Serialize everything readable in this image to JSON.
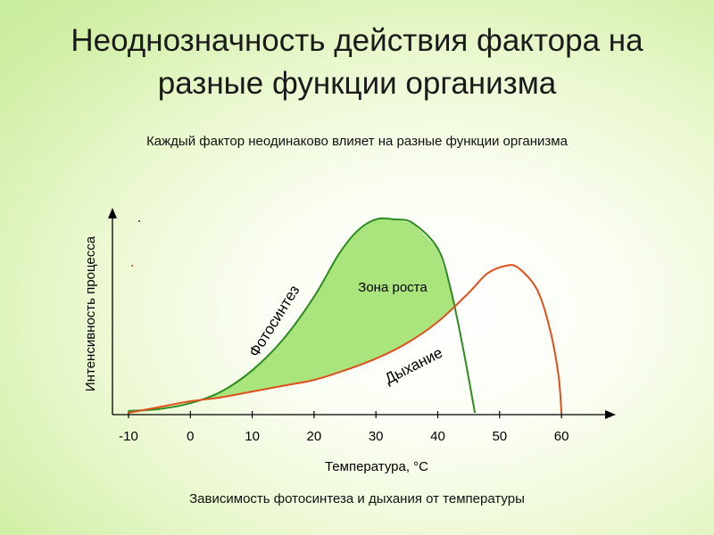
{
  "slide": {
    "title_line1": "Неоднозначность действия фактора на",
    "title_line2": "разные функции организма",
    "subtitle": "Каждый фактор неодинаково влияет на разные функции организма",
    "caption": "Зависимость фотосинтеза и дыхания от температуры"
  },
  "chart_data": {
    "type": "line",
    "xlabel": "Температура, °С",
    "ylabel": "Интенсивность процесса",
    "xticks": [
      -10,
      0,
      10,
      20,
      30,
      40,
      50,
      60
    ],
    "xlim": [
      -10,
      60
    ],
    "ylim": [
      0,
      100
    ],
    "y_tick_labels": false,
    "grid": false,
    "series": [
      {
        "name": "Фотосинтез",
        "color": "#2e8b1f",
        "x": [
          -10,
          -5,
          0,
          5,
          10,
          15,
          20,
          24,
          27,
          30,
          33,
          36,
          40,
          42,
          44,
          46
        ],
        "y": [
          1,
          2,
          5,
          11,
          22,
          38,
          60,
          82,
          94,
          100,
          100,
          98,
          85,
          65,
          35,
          0
        ]
      },
      {
        "name": "Дыхание",
        "color": "#e0501c",
        "x": [
          -10,
          -5,
          0,
          5,
          10,
          15,
          20,
          25,
          30,
          35,
          40,
          45,
          48,
          51,
          53,
          56,
          58,
          59.5,
          60
        ],
        "y": [
          0,
          3,
          6,
          8,
          11,
          14,
          17,
          22,
          28,
          36,
          47,
          62,
          72,
          76,
          75,
          64,
          45,
          20,
          0
        ]
      }
    ],
    "area": {
      "label": "Зона роста",
      "between": [
        "Фотосинтез",
        "Дыхание"
      ],
      "fill": "#a9e47c"
    }
  }
}
